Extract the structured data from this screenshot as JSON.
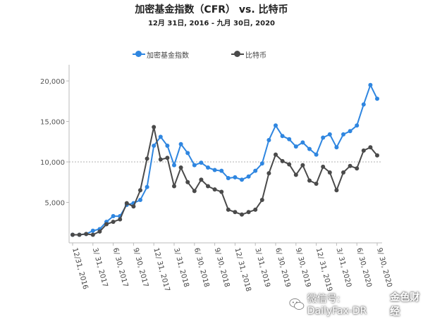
{
  "chart_data": {
    "type": "line",
    "title": "加密基金指数（CFR） vs. 比特币",
    "subtitle": "12月 31日, 2016 - 九月 30日, 2020",
    "xlabel": "",
    "ylabel": "",
    "y_ticks": [
      "5,000",
      "10,000",
      "15,000",
      "20,000"
    ],
    "y_tick_values": [
      5000,
      10000,
      15000,
      20000
    ],
    "ylim": [
      0,
      22000
    ],
    "grid": false,
    "reference_line": 10000,
    "legend_position": "top",
    "x_tick_labels": [
      "12/31, 2016",
      "3/ 31, 2017",
      "6/ 30, 2017",
      "9/ 30, 2017",
      "12/ 31, 2017",
      "3/ 31, 2018",
      "6/ 30, 2018",
      "9/ 30, 2018",
      "12/ 31, 2018",
      "3/ 31, 2019",
      "6/ 30, 2019",
      "9/ 30, 2019",
      "12/ 31, 2019",
      "3/ 31, 2020",
      "6/ 30, 2020",
      "9/ 30, 2020"
    ],
    "series": [
      {
        "name": "加密基金指数",
        "color": "#2f86e0",
        "values": [
          1000,
          1000,
          1100,
          1500,
          1700,
          2600,
          3300,
          3300,
          4700,
          4900,
          5300,
          6900,
          12000,
          13100,
          12000,
          9600,
          12200,
          11100,
          9600,
          9900,
          9300,
          9000,
          8900,
          8000,
          8100,
          7800,
          8200,
          8900,
          9800,
          12700,
          14500,
          13200,
          12800,
          11900,
          12400,
          11600,
          10900,
          13000,
          13400,
          11800,
          13400,
          13800,
          14500,
          17100,
          19500,
          17800
        ]
      },
      {
        "name": "比特币",
        "color": "#4a4a4a",
        "values": [
          1000,
          1000,
          1100,
          1000,
          1400,
          2300,
          2600,
          2900,
          4900,
          4500,
          6500,
          10400,
          14300,
          10300,
          10500,
          7000,
          9300,
          7500,
          6400,
          7800,
          7000,
          6600,
          6300,
          4100,
          3800,
          3500,
          3800,
          4100,
          5300,
          8600,
          10900,
          10100,
          9700,
          8400,
          9600,
          7700,
          7300,
          9400,
          8700,
          6500,
          8700,
          9500,
          9200,
          11400,
          11800,
          10800
        ]
      }
    ]
  },
  "watermark": {
    "text": "微信号: DailyFax-DR",
    "brand": "金色财经"
  }
}
